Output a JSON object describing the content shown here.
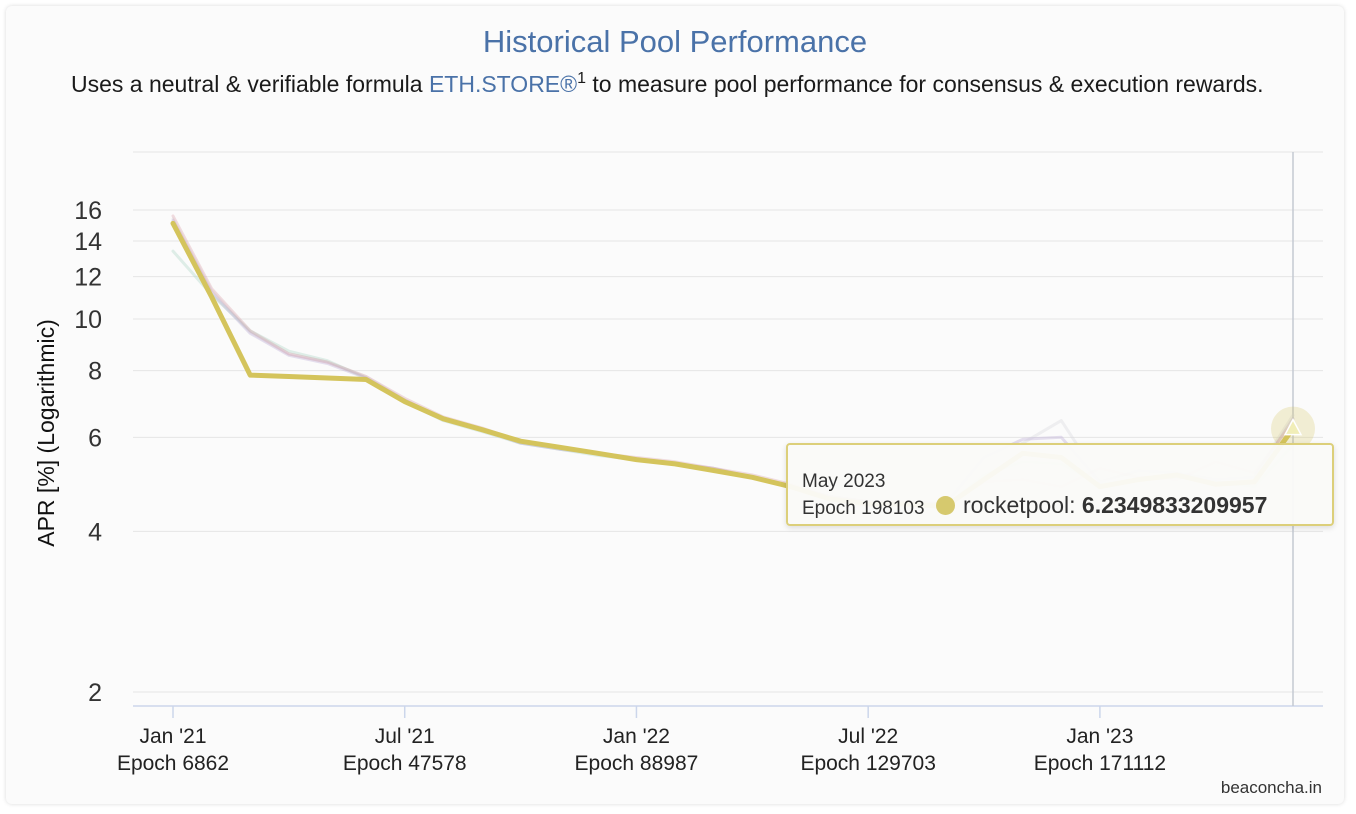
{
  "title": "Historical Pool Performance",
  "subtitle": {
    "before": "Uses a neutral & verifiable formula ",
    "link": "ETH.STORE®",
    "sup": "1",
    "after": " to measure pool performance for consensus & execution rewards."
  },
  "credit": "beaconcha.in",
  "tooltip": {
    "date": "May 2023",
    "epoch": "Epoch 198103",
    "series": "rocketpool",
    "value": "6.2349833209957"
  },
  "colors": {
    "highlight": "#d4c45c",
    "grid": "#e6e6e6",
    "axis": "#ccd6eb",
    "text": "#333333"
  },
  "chart_data": {
    "type": "line",
    "title": "Historical Pool Performance",
    "ylabel": "APR [%] (Logarithmic)",
    "ylim": [
      2,
      18
    ],
    "yticks": [
      2,
      4,
      6,
      8,
      10,
      12,
      14,
      16
    ],
    "x_ticks": [
      {
        "label": "Jan '21",
        "epoch": "Epoch 6862",
        "month": 1
      },
      {
        "label": "Jul '21",
        "epoch": "Epoch 47578",
        "month": 7
      },
      {
        "label": "Jan '22",
        "epoch": "Epoch 88987",
        "month": 13
      },
      {
        "label": "Jul '22",
        "epoch": "Epoch 129703",
        "month": 19
      },
      {
        "label": "Jan '23",
        "epoch": "Epoch 171112",
        "month": 25
      }
    ],
    "x_range": [
      0,
      29.5
    ],
    "highlighted_series": "rocketpool",
    "series": [
      {
        "name": "rocketpool",
        "color": "#d4c45c",
        "x": [
          0,
          1,
          2,
          3,
          4,
          5,
          6,
          7,
          8,
          9,
          10,
          11,
          12,
          13,
          14,
          15,
          16,
          17,
          18,
          19,
          20,
          21,
          22,
          23,
          24,
          25,
          26,
          27,
          28,
          29
        ],
        "values": [
          15.1,
          11.0,
          7.85,
          7.8,
          7.75,
          7.7,
          7.0,
          6.5,
          6.2,
          5.9,
          5.75,
          5.6,
          5.45,
          5.35,
          5.2,
          5.05,
          4.85,
          4.6,
          4.5,
          4.5,
          4.45,
          5.0,
          5.6,
          5.5,
          4.85,
          5.0,
          5.1,
          4.9,
          4.95,
          6.23
        ]
      },
      {
        "name": "",
        "color": "#d9a0a8",
        "x": [
          0,
          1,
          2,
          3,
          4,
          5,
          6,
          7,
          8,
          9,
          10,
          11,
          12,
          13,
          14,
          15,
          16,
          17,
          18,
          19,
          20,
          21,
          22,
          23,
          24,
          25,
          26,
          27,
          28,
          29
        ],
        "values": [
          15.6,
          11.4,
          9.5,
          8.6,
          8.3,
          7.8,
          7.1,
          6.55,
          6.25,
          5.9,
          5.75,
          5.6,
          5.5,
          5.4,
          5.25,
          5.1,
          4.9,
          4.65,
          4.55,
          4.55,
          4.5,
          4.95,
          5.0,
          4.85,
          5.25,
          5.05,
          5.0,
          5.4,
          5.15,
          6.4
        ]
      },
      {
        "name": "",
        "color": "#b9aad4",
        "x": [
          0,
          1,
          2,
          3,
          4,
          5,
          6,
          7,
          8,
          9,
          10,
          11,
          12,
          13,
          14,
          15,
          16,
          17,
          18,
          19,
          20,
          21,
          22,
          23,
          24,
          25,
          26,
          27,
          28,
          29
        ],
        "values": [
          15.3,
          11.2,
          9.4,
          8.55,
          8.25,
          7.75,
          7.05,
          6.5,
          6.2,
          5.85,
          5.7,
          5.6,
          5.45,
          5.35,
          5.25,
          5.05,
          4.85,
          4.65,
          4.55,
          4.55,
          4.5,
          5.5,
          5.95,
          6.0,
          4.95,
          5.2,
          5.15,
          5.0,
          5.05,
          6.5
        ]
      },
      {
        "name": "",
        "color": "#a8d4c4",
        "x": [
          0,
          1,
          2,
          3,
          4,
          5,
          6,
          7,
          8,
          9,
          10,
          11,
          12,
          13,
          14,
          15,
          16,
          17,
          18,
          19,
          20,
          21,
          22,
          23,
          24,
          25,
          26,
          27,
          28,
          29
        ],
        "values": [
          13.4,
          11.1,
          9.5,
          8.7,
          8.35,
          7.75,
          7.0,
          6.45,
          6.15,
          5.85,
          5.7,
          5.55,
          5.45,
          5.35,
          5.2,
          5.05,
          4.85,
          4.6,
          4.5,
          4.5,
          4.45,
          5.1,
          5.4,
          5.35,
          4.9,
          5.0,
          5.05,
          4.95,
          4.85,
          5.8
        ]
      },
      {
        "name": "",
        "color": "#d6d6dd",
        "x": [
          0,
          1,
          2,
          3,
          4,
          5,
          6,
          7,
          8,
          9,
          10,
          11,
          12,
          13,
          14,
          15,
          16,
          17,
          18,
          19,
          20,
          21,
          22,
          23,
          24,
          25,
          26,
          27,
          28,
          29
        ],
        "values": [
          15.4,
          11.3,
          9.45,
          8.6,
          8.3,
          7.8,
          7.05,
          6.5,
          6.2,
          5.85,
          5.7,
          5.6,
          5.45,
          5.35,
          5.25,
          5.05,
          4.85,
          4.65,
          4.55,
          4.55,
          4.5,
          5.3,
          5.85,
          6.45,
          5.0,
          5.15,
          5.1,
          5.05,
          5.1,
          6.6
        ]
      }
    ]
  }
}
